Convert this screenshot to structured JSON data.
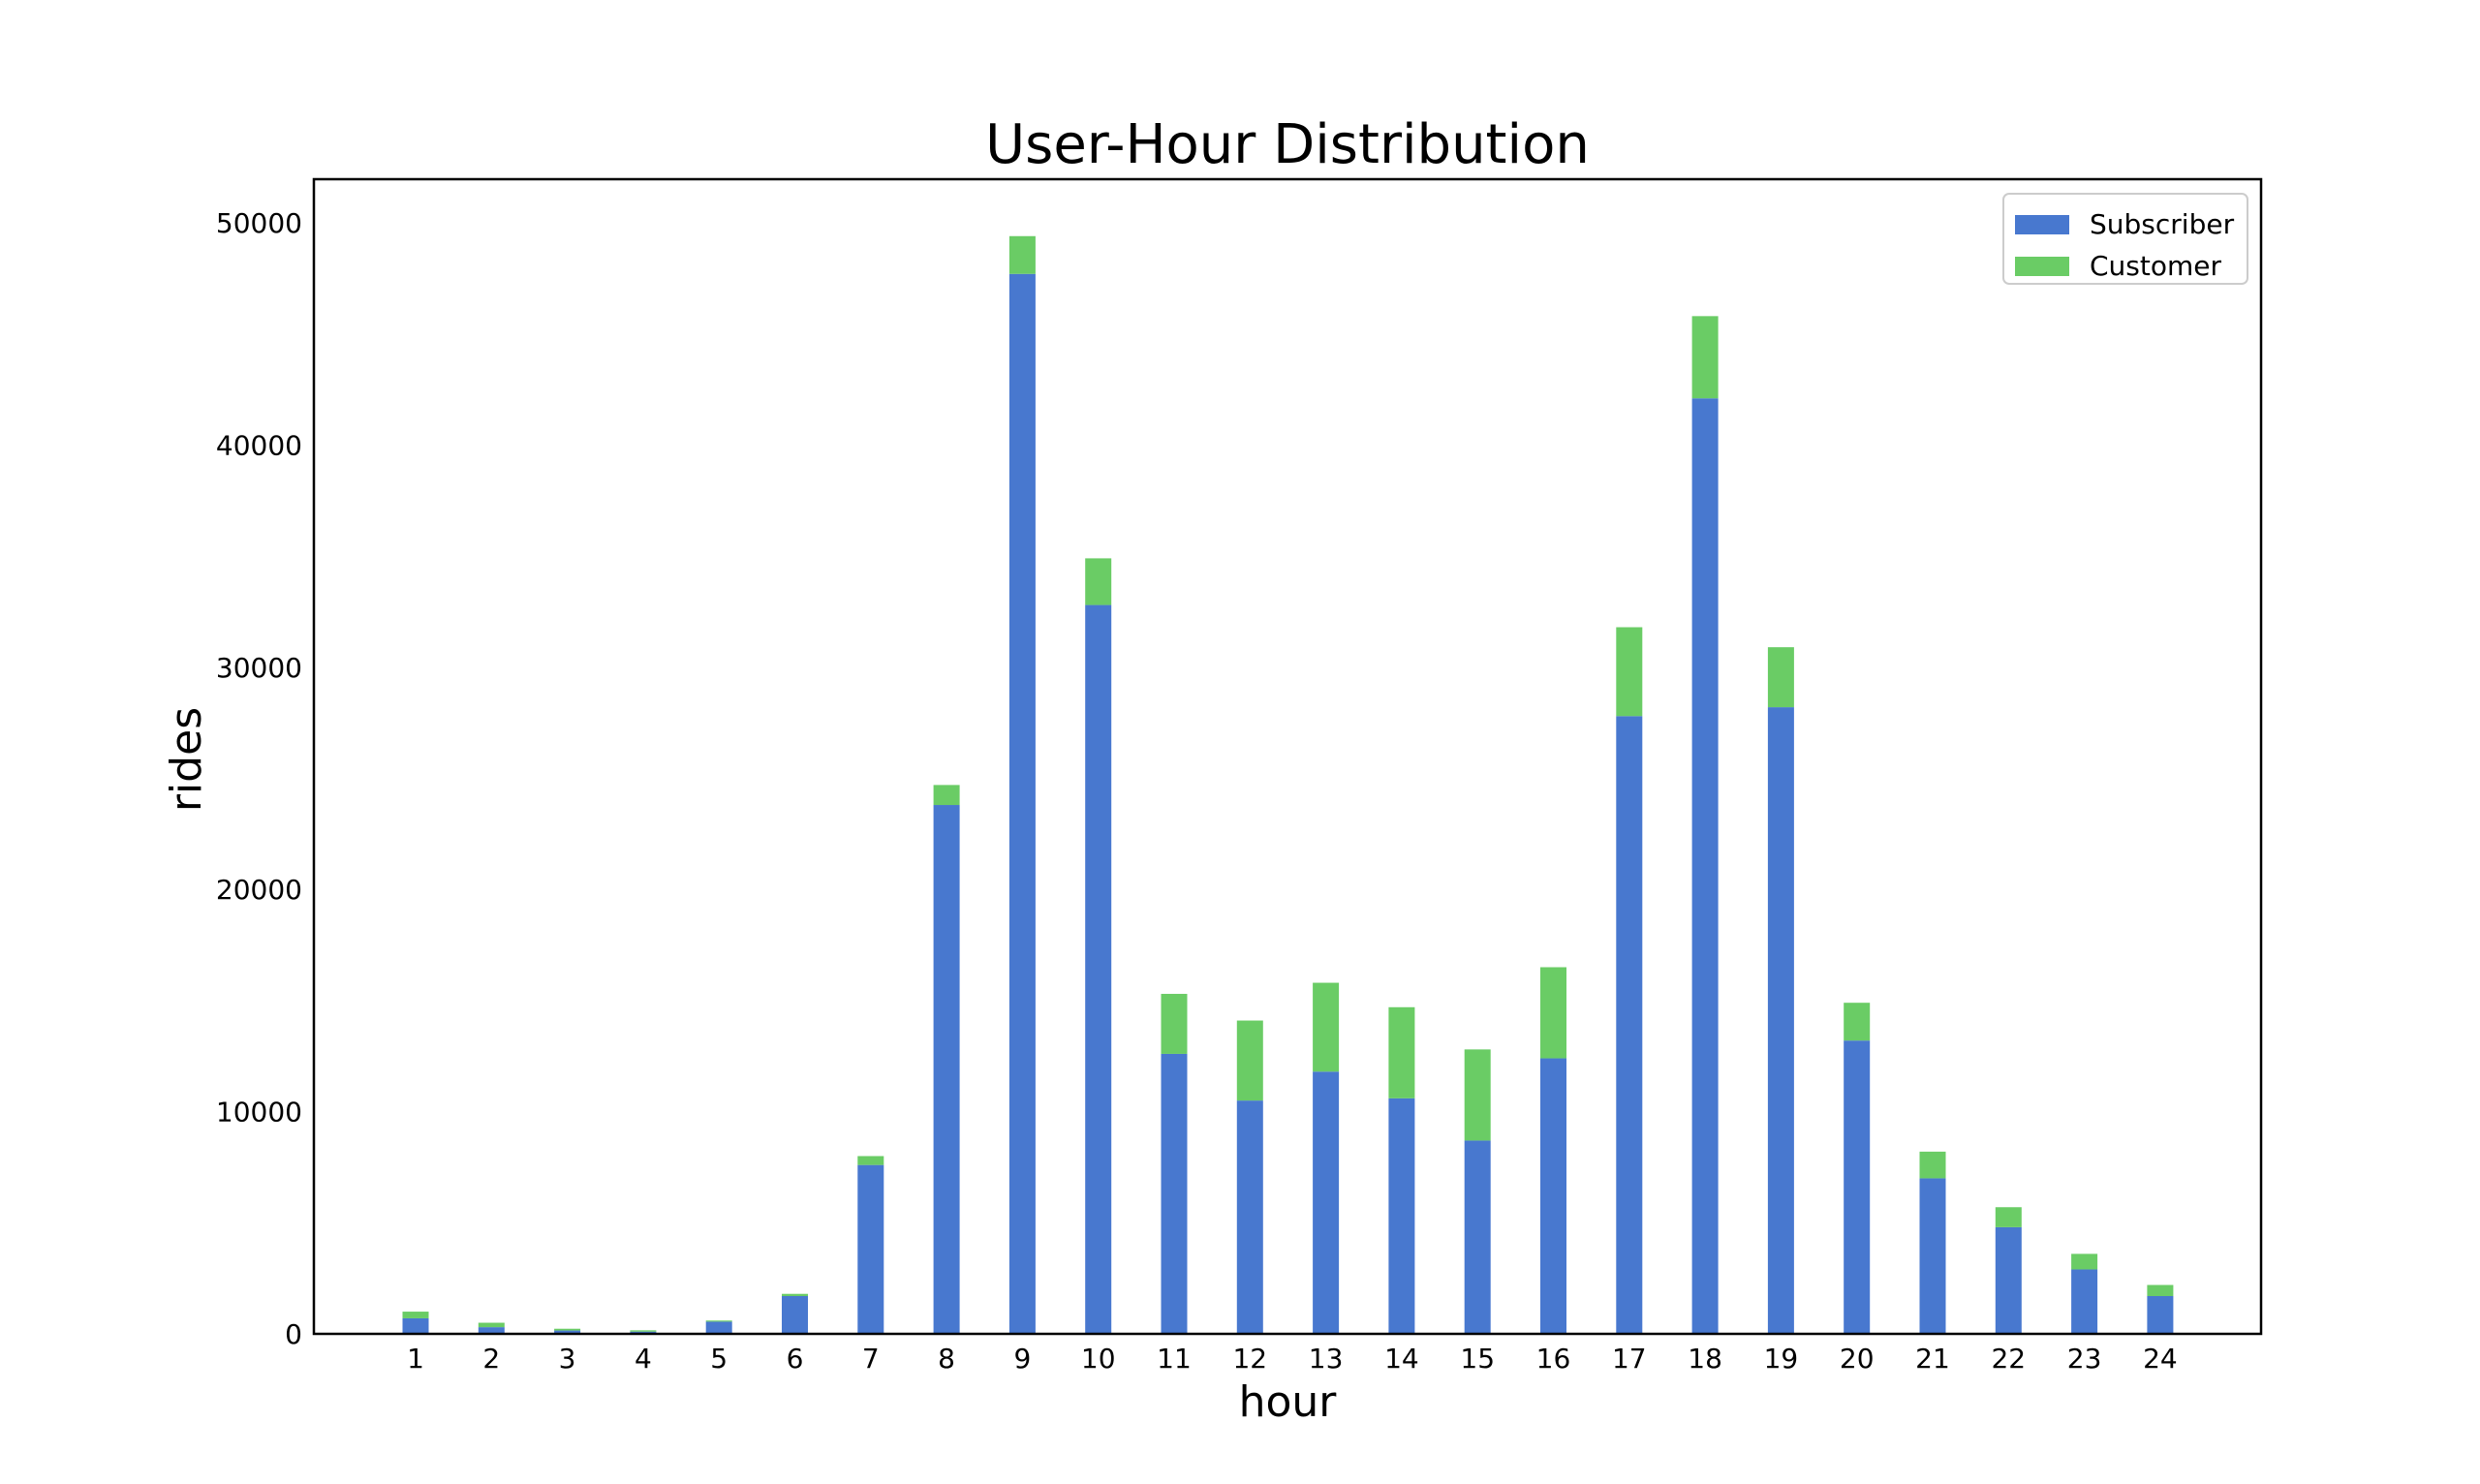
{
  "chart_data": {
    "type": "bar",
    "stacked": true,
    "title": "User-Hour Distribution",
    "xlabel": "hour",
    "ylabel": "rides",
    "categories": [
      "1",
      "2",
      "3",
      "4",
      "5",
      "6",
      "7",
      "8",
      "9",
      "10",
      "11",
      "12",
      "13",
      "14",
      "15",
      "16",
      "17",
      "18",
      "19",
      "20",
      "21",
      "22",
      "23",
      "24"
    ],
    "ylim": [
      0,
      52000
    ],
    "yticks": [
      0,
      10000,
      20000,
      30000,
      40000,
      50000
    ],
    "ytick_labels": [
      "0",
      "10000",
      "20000",
      "30000",
      "40000",
      "50000"
    ],
    "grid": false,
    "legend_position": "top-right",
    "series": [
      {
        "name": "Subscriber",
        "color": "#4878cf",
        "values": [
          700,
          300,
          150,
          100,
          550,
          1700,
          7600,
          23800,
          47700,
          32800,
          12600,
          10500,
          11800,
          10600,
          8700,
          12400,
          27800,
          42100,
          28200,
          13200,
          7000,
          4800,
          2900,
          1700
        ]
      },
      {
        "name": "Customer",
        "color": "#6acc65",
        "values": [
          300,
          200,
          80,
          60,
          50,
          100,
          400,
          900,
          1700,
          2100,
          2700,
          3600,
          4000,
          4100,
          4100,
          4100,
          4000,
          3700,
          2700,
          1700,
          1200,
          900,
          700,
          500
        ]
      }
    ]
  }
}
